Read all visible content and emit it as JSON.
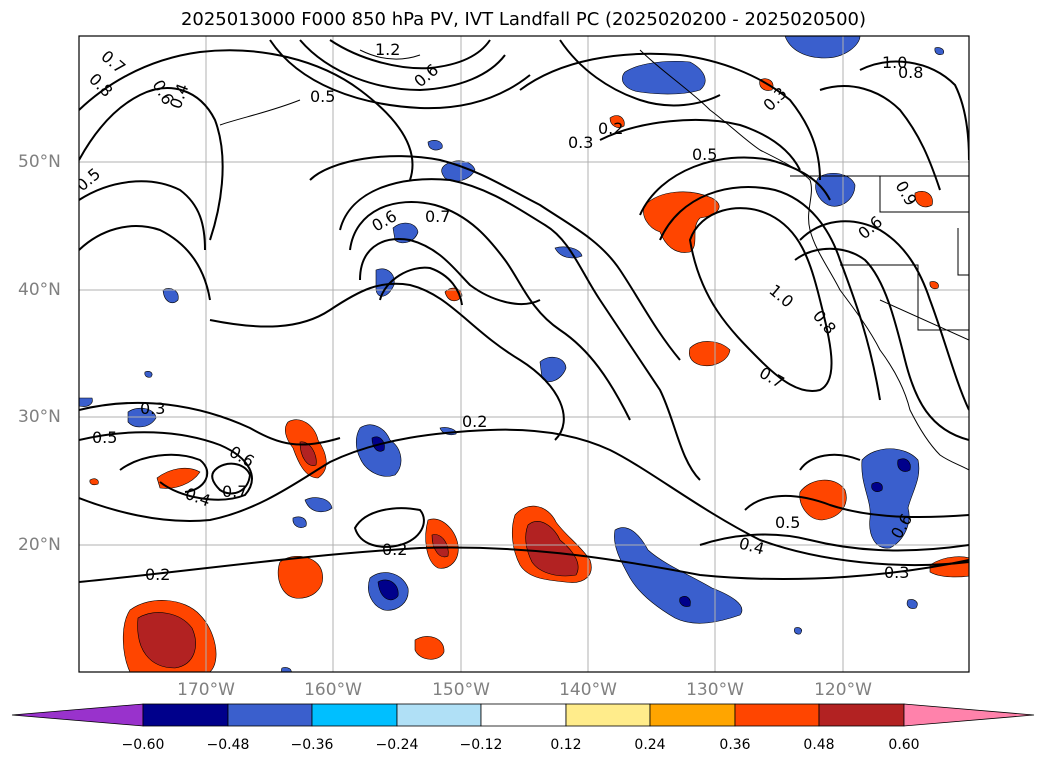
{
  "title": "2025013000 F000 850 hPa PV, IVT Landfall PC (2025020200 - 2025020500)",
  "axes": {
    "lat_labels": [
      "50°N",
      "40°N",
      "30°N",
      "20°N"
    ],
    "lon_labels": [
      "170°W",
      "160°W",
      "150°W",
      "140°W",
      "130°W",
      "120°W"
    ],
    "grid": true
  },
  "colorbar": {
    "ticks": [
      "−0.60",
      "−0.48",
      "−0.36",
      "−0.24",
      "−0.12",
      "0.12",
      "0.24",
      "0.36",
      "0.48",
      "0.60"
    ],
    "colors": [
      "#9932cc",
      "#00008b",
      "#3a5fcd",
      "#00bfff",
      "#b0e0f6",
      "#ffffff",
      "#ffec8b",
      "#ffa500",
      "#ff4500",
      "#b22222",
      "#ff82ab"
    ]
  },
  "contour_labels": [
    "0.7",
    "0.8",
    "0.6",
    "0.4",
    "1.2",
    "0.6",
    "0.5",
    "0.3",
    "0.2",
    "0.3",
    "0.5",
    "1.0",
    "0.8",
    "0.5",
    "0.6",
    "0.7",
    "0.6",
    "1.0",
    "0.8",
    "0.7",
    "0.3",
    "0.2",
    "0.5",
    "0.6",
    "0.7",
    "0.4",
    "0.2",
    "0.2",
    "0.5",
    "0.4",
    "0.3",
    "0.6",
    "0.9"
  ]
}
